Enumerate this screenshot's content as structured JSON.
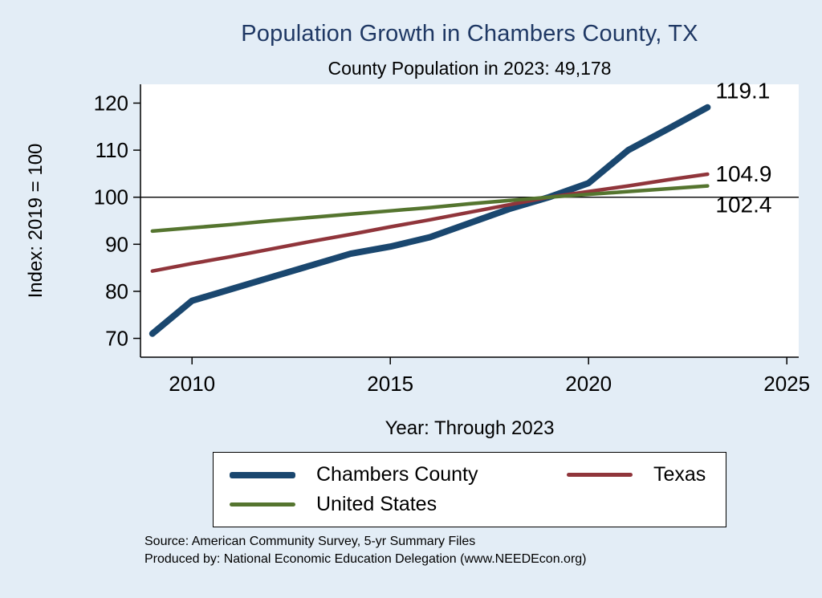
{
  "chart": {
    "title": "Population Growth in Chambers County, TX",
    "subtitle": "County Population in 2023: 49,178",
    "ylabel": "Index: 2019 = 100",
    "xlabel": "Year: Through 2023"
  },
  "footer": {
    "source": "Source: American Community Survey, 5-yr Summary Files",
    "produced": "Produced by: National Economic Education Delegation (www.NEEDEcon.org)"
  },
  "colors": {
    "background": "#e3edf6",
    "title": "#1f3864",
    "axis": "#000000",
    "reference_line": "#000000"
  },
  "chart_data": {
    "type": "line",
    "x": [
      2009,
      2010,
      2011,
      2012,
      2013,
      2014,
      2015,
      2016,
      2017,
      2018,
      2019,
      2020,
      2021,
      2022,
      2023
    ],
    "series": [
      {
        "name": "Chambers County",
        "color": "#1a476f",
        "end_label": "119.1",
        "values": [
          71,
          78,
          80.5,
          83,
          85.5,
          88,
          89.5,
          91.5,
          94.5,
          97.5,
          100,
          103,
          110,
          114.5,
          119.1
        ]
      },
      {
        "name": "Texas",
        "color": "#90353b",
        "end_label": "104.9",
        "values": [
          84.3,
          85.9,
          87.4,
          89,
          90.6,
          92.1,
          93.7,
          95.2,
          96.8,
          98.4,
          100,
          101.2,
          102.4,
          103.7,
          104.9
        ]
      },
      {
        "name": "United States",
        "color": "#55752f",
        "end_label": "102.4",
        "values": [
          92.8,
          93.5,
          94.2,
          95,
          95.7,
          96.4,
          97.1,
          97.8,
          98.6,
          99.3,
          100,
          100.6,
          101.2,
          101.8,
          102.4
        ]
      }
    ],
    "xlim": [
      2008.7,
      2025.3
    ],
    "ylim": [
      66,
      124
    ],
    "xticks": [
      2010,
      2015,
      2020,
      2025
    ],
    "yticks": [
      70,
      80,
      90,
      100,
      110,
      120
    ],
    "ref_line": 100,
    "grid": false,
    "legend_position": "bottom"
  }
}
